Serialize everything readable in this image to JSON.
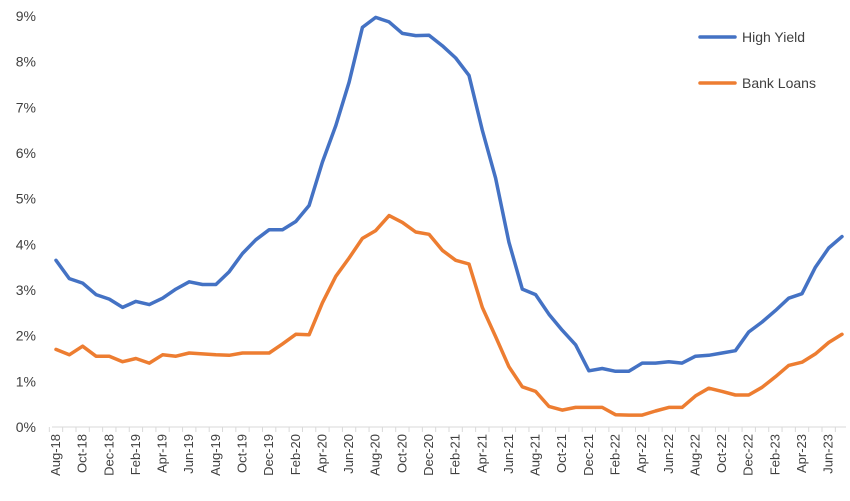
{
  "chart_data": {
    "type": "line",
    "title": "",
    "xlabel": "",
    "ylabel": "",
    "ylim": [
      0,
      9
    ],
    "y_ticks": [
      "0%",
      "1%",
      "2%",
      "3%",
      "4%",
      "5%",
      "6%",
      "7%",
      "8%",
      "9%"
    ],
    "x_tick_labels": [
      "Aug-18",
      "Oct-18",
      "Dec-18",
      "Feb-19",
      "Apr-19",
      "Jun-19",
      "Aug-19",
      "Oct-19",
      "Dec-19",
      "Feb-20",
      "Apr-20",
      "Jun-20",
      "Aug-20",
      "Oct-20",
      "Dec-20",
      "Feb-21",
      "Apr-21",
      "Jun-21",
      "Aug-21",
      "Oct-21",
      "Dec-21",
      "Feb-22",
      "Apr-22",
      "Jun-22",
      "Aug-22",
      "Oct-22",
      "Dec-22",
      "Feb-23",
      "Apr-23",
      "Jun-23"
    ],
    "x": [
      "Aug-18",
      "Sep-18",
      "Oct-18",
      "Nov-18",
      "Dec-18",
      "Jan-19",
      "Feb-19",
      "Mar-19",
      "Apr-19",
      "May-19",
      "Jun-19",
      "Jul-19",
      "Aug-19",
      "Sep-19",
      "Oct-19",
      "Nov-19",
      "Dec-19",
      "Jan-20",
      "Feb-20",
      "Mar-20",
      "Apr-20",
      "May-20",
      "Jun-20",
      "Jul-20",
      "Aug-20",
      "Sep-20",
      "Oct-20",
      "Nov-20",
      "Dec-20",
      "Jan-21",
      "Feb-21",
      "Mar-21",
      "Apr-21",
      "May-21",
      "Jun-21",
      "Jul-21",
      "Aug-21",
      "Sep-21",
      "Oct-21",
      "Nov-21",
      "Dec-21",
      "Jan-22",
      "Feb-22",
      "Mar-22",
      "Apr-22",
      "May-22",
      "Jun-22",
      "Jul-22",
      "Aug-22",
      "Sep-22",
      "Oct-22",
      "Nov-22",
      "Dec-22",
      "Jan-23",
      "Feb-23",
      "Mar-23",
      "Apr-23",
      "May-23",
      "Jun-23",
      "Jul-23"
    ],
    "legend_position": "top-right",
    "grid": false,
    "series": [
      {
        "name": "High Yield",
        "color": "#4472C4",
        "values": [
          3.65,
          3.25,
          3.15,
          2.9,
          2.8,
          2.62,
          2.75,
          2.68,
          2.82,
          3.02,
          3.18,
          3.12,
          3.12,
          3.4,
          3.8,
          4.1,
          4.32,
          4.32,
          4.5,
          4.85,
          5.8,
          6.6,
          7.55,
          8.75,
          8.97,
          8.87,
          8.62,
          8.57,
          8.58,
          8.35,
          8.08,
          7.7,
          6.5,
          5.45,
          4.05,
          3.02,
          2.9,
          2.47,
          2.12,
          1.8,
          1.23,
          1.28,
          1.22,
          1.22,
          1.4,
          1.4,
          1.43,
          1.4,
          1.55,
          1.57,
          1.62,
          1.67,
          2.08,
          2.3,
          2.55,
          2.82,
          2.92,
          3.5,
          3.92,
          4.17
        ]
      },
      {
        "name": "Bank Loans",
        "color": "#ED7D31",
        "values": [
          1.7,
          1.58,
          1.77,
          1.55,
          1.55,
          1.43,
          1.5,
          1.4,
          1.58,
          1.55,
          1.62,
          1.6,
          1.58,
          1.57,
          1.62,
          1.62,
          1.62,
          1.82,
          2.03,
          2.02,
          2.72,
          3.3,
          3.7,
          4.13,
          4.3,
          4.63,
          4.48,
          4.27,
          4.22,
          3.87,
          3.65,
          3.57,
          2.62,
          1.98,
          1.32,
          0.88,
          0.78,
          0.45,
          0.37,
          0.43,
          0.43,
          0.43,
          0.27,
          0.26,
          0.26,
          0.35,
          0.43,
          0.43,
          0.68,
          0.85,
          0.78,
          0.7,
          0.7,
          0.87,
          1.1,
          1.35,
          1.42,
          1.6,
          1.85,
          2.03
        ]
      }
    ]
  }
}
